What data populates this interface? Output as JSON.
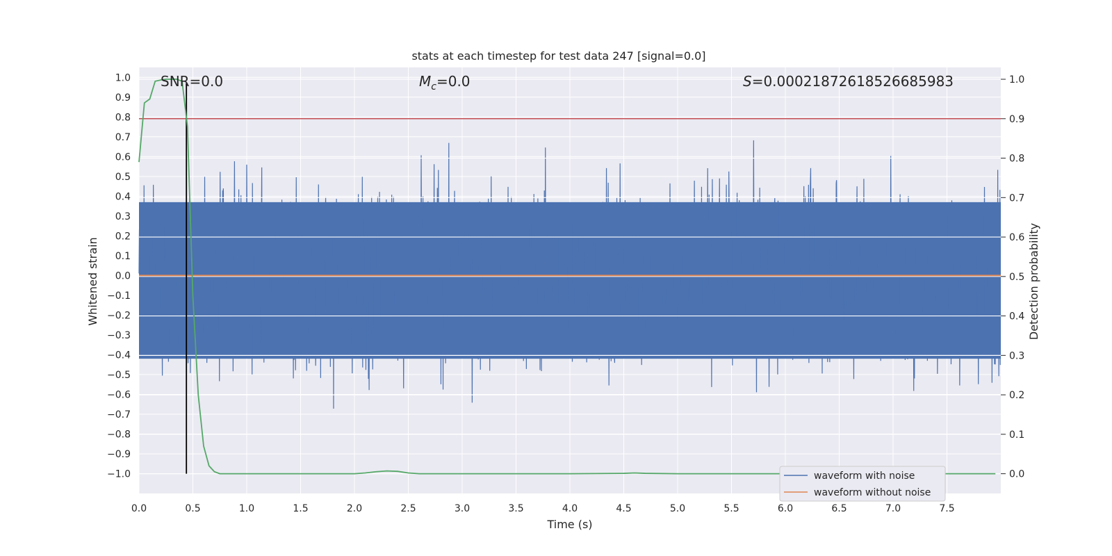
{
  "chart_data": {
    "type": "line",
    "title": "stats at each timestep for test data 247 [signal=0.0]",
    "xlabel": "Time (s)",
    "ylabel_left": "Whitened strain",
    "ylabel_right": "Detection probability",
    "xlim": [
      0.0,
      8.0
    ],
    "ylim_left": [
      -1.1,
      1.05
    ],
    "ylim_right": [
      -0.05,
      1.03
    ],
    "x_ticks": [
      "0.0",
      "0.5",
      "1.0",
      "1.5",
      "2.0",
      "2.5",
      "3.0",
      "3.5",
      "4.0",
      "4.5",
      "5.0",
      "5.5",
      "6.0",
      "6.5",
      "7.0",
      "7.5"
    ],
    "y_ticks_left": [
      "1.0",
      "0.9",
      "0.8",
      "0.7",
      "0.6",
      "0.5",
      "0.4",
      "0.3",
      "0.2",
      "0.1",
      "0.0",
      "−0.1",
      "−0.2",
      "−0.3",
      "−0.4",
      "−0.5",
      "−0.6",
      "−0.7",
      "−0.8",
      "−0.9",
      "−1.0"
    ],
    "y_ticks_right": [
      "1.0",
      "0.9",
      "0.8",
      "0.7",
      "0.6",
      "0.5",
      "0.4",
      "0.3",
      "0.2",
      "0.1",
      "0.0"
    ],
    "annotations": {
      "snr": "SNR=0.0",
      "mc_symbol": "M",
      "mc_sub": "c",
      "mc_value": "=0.0",
      "s_symbol": "S",
      "s_value": "=0.00021872618526685983"
    },
    "threshold_probability": 0.9,
    "marker_time": 0.44,
    "series": [
      {
        "name": "waveform with noise",
        "color": "#4c72b0",
        "description_range": [
          -1.0,
          0.96
        ]
      },
      {
        "name": "waveform without noise",
        "color": "#dd8452",
        "value": 0.0
      }
    ],
    "detection_probability": {
      "color": "#55a868",
      "x": [
        0.0,
        0.05,
        0.1,
        0.15,
        0.2,
        0.25,
        0.3,
        0.35,
        0.4,
        0.45,
        0.5,
        0.55,
        0.6,
        0.65,
        0.7,
        0.75,
        0.8,
        1.0,
        1.5,
        2.0,
        2.1,
        2.2,
        2.3,
        2.4,
        2.5,
        2.6,
        3.0,
        3.5,
        4.0,
        4.5,
        4.6,
        4.7,
        5.0,
        6.0,
        7.0,
        7.95
      ],
      "y": [
        0.79,
        0.94,
        0.95,
        0.995,
        0.998,
        1.0,
        1.0,
        1.0,
        0.995,
        0.88,
        0.45,
        0.2,
        0.07,
        0.02,
        0.005,
        0.0,
        0.0,
        0.0,
        0.0,
        0.0,
        0.002,
        0.005,
        0.007,
        0.006,
        0.002,
        0.0,
        0.0,
        0.0,
        0.0,
        0.001,
        0.002,
        0.001,
        0.0,
        0.0,
        0.0,
        0.0
      ]
    },
    "legend_location": "lower right",
    "grid": true,
    "colors": {
      "threshold": "#c44e52",
      "marker": "#000000",
      "background": "#eaeaf2"
    }
  }
}
